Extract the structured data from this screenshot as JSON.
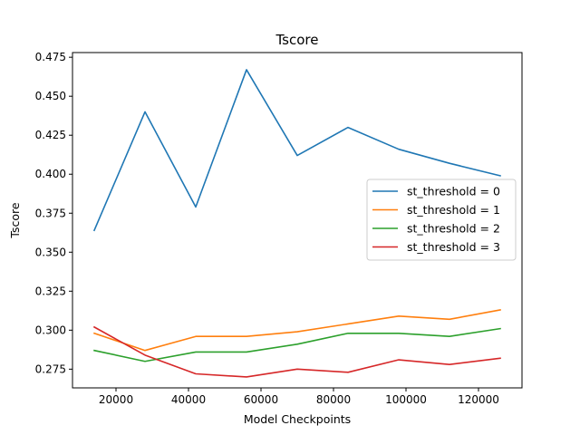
{
  "chart_data": {
    "type": "line",
    "title": "Tscore",
    "xlabel": "Model Checkpoints",
    "ylabel": "Tscore",
    "xlim": [
      8000,
      132000
    ],
    "ylim": [
      0.263,
      0.478
    ],
    "xticks": [
      20000,
      40000,
      60000,
      80000,
      100000,
      120000
    ],
    "yticks": [
      0.275,
      0.3,
      0.325,
      0.35,
      0.375,
      0.4,
      0.425,
      0.45,
      0.475
    ],
    "grid": false,
    "legend_position": "center-right",
    "x": [
      14000,
      28000,
      42000,
      56000,
      70000,
      84000,
      98000,
      112000,
      126000
    ],
    "series": [
      {
        "name": "st_threshold = 0",
        "color": "#1f77b4",
        "values": [
          0.364,
          0.44,
          0.379,
          0.467,
          0.412,
          0.43,
          0.416,
          0.407,
          0.399
        ]
      },
      {
        "name": "st_threshold = 1",
        "color": "#ff7f0e",
        "values": [
          0.298,
          0.287,
          0.296,
          0.296,
          0.299,
          0.304,
          0.309,
          0.307,
          0.313
        ]
      },
      {
        "name": "st_threshold = 2",
        "color": "#2ca02c",
        "values": [
          0.287,
          0.28,
          0.286,
          0.286,
          0.291,
          0.298,
          0.298,
          0.296,
          0.301
        ]
      },
      {
        "name": "st_threshold = 3",
        "color": "#d62728",
        "values": [
          0.302,
          0.284,
          0.272,
          0.27,
          0.275,
          0.273,
          0.281,
          0.278,
          0.282
        ]
      }
    ]
  }
}
